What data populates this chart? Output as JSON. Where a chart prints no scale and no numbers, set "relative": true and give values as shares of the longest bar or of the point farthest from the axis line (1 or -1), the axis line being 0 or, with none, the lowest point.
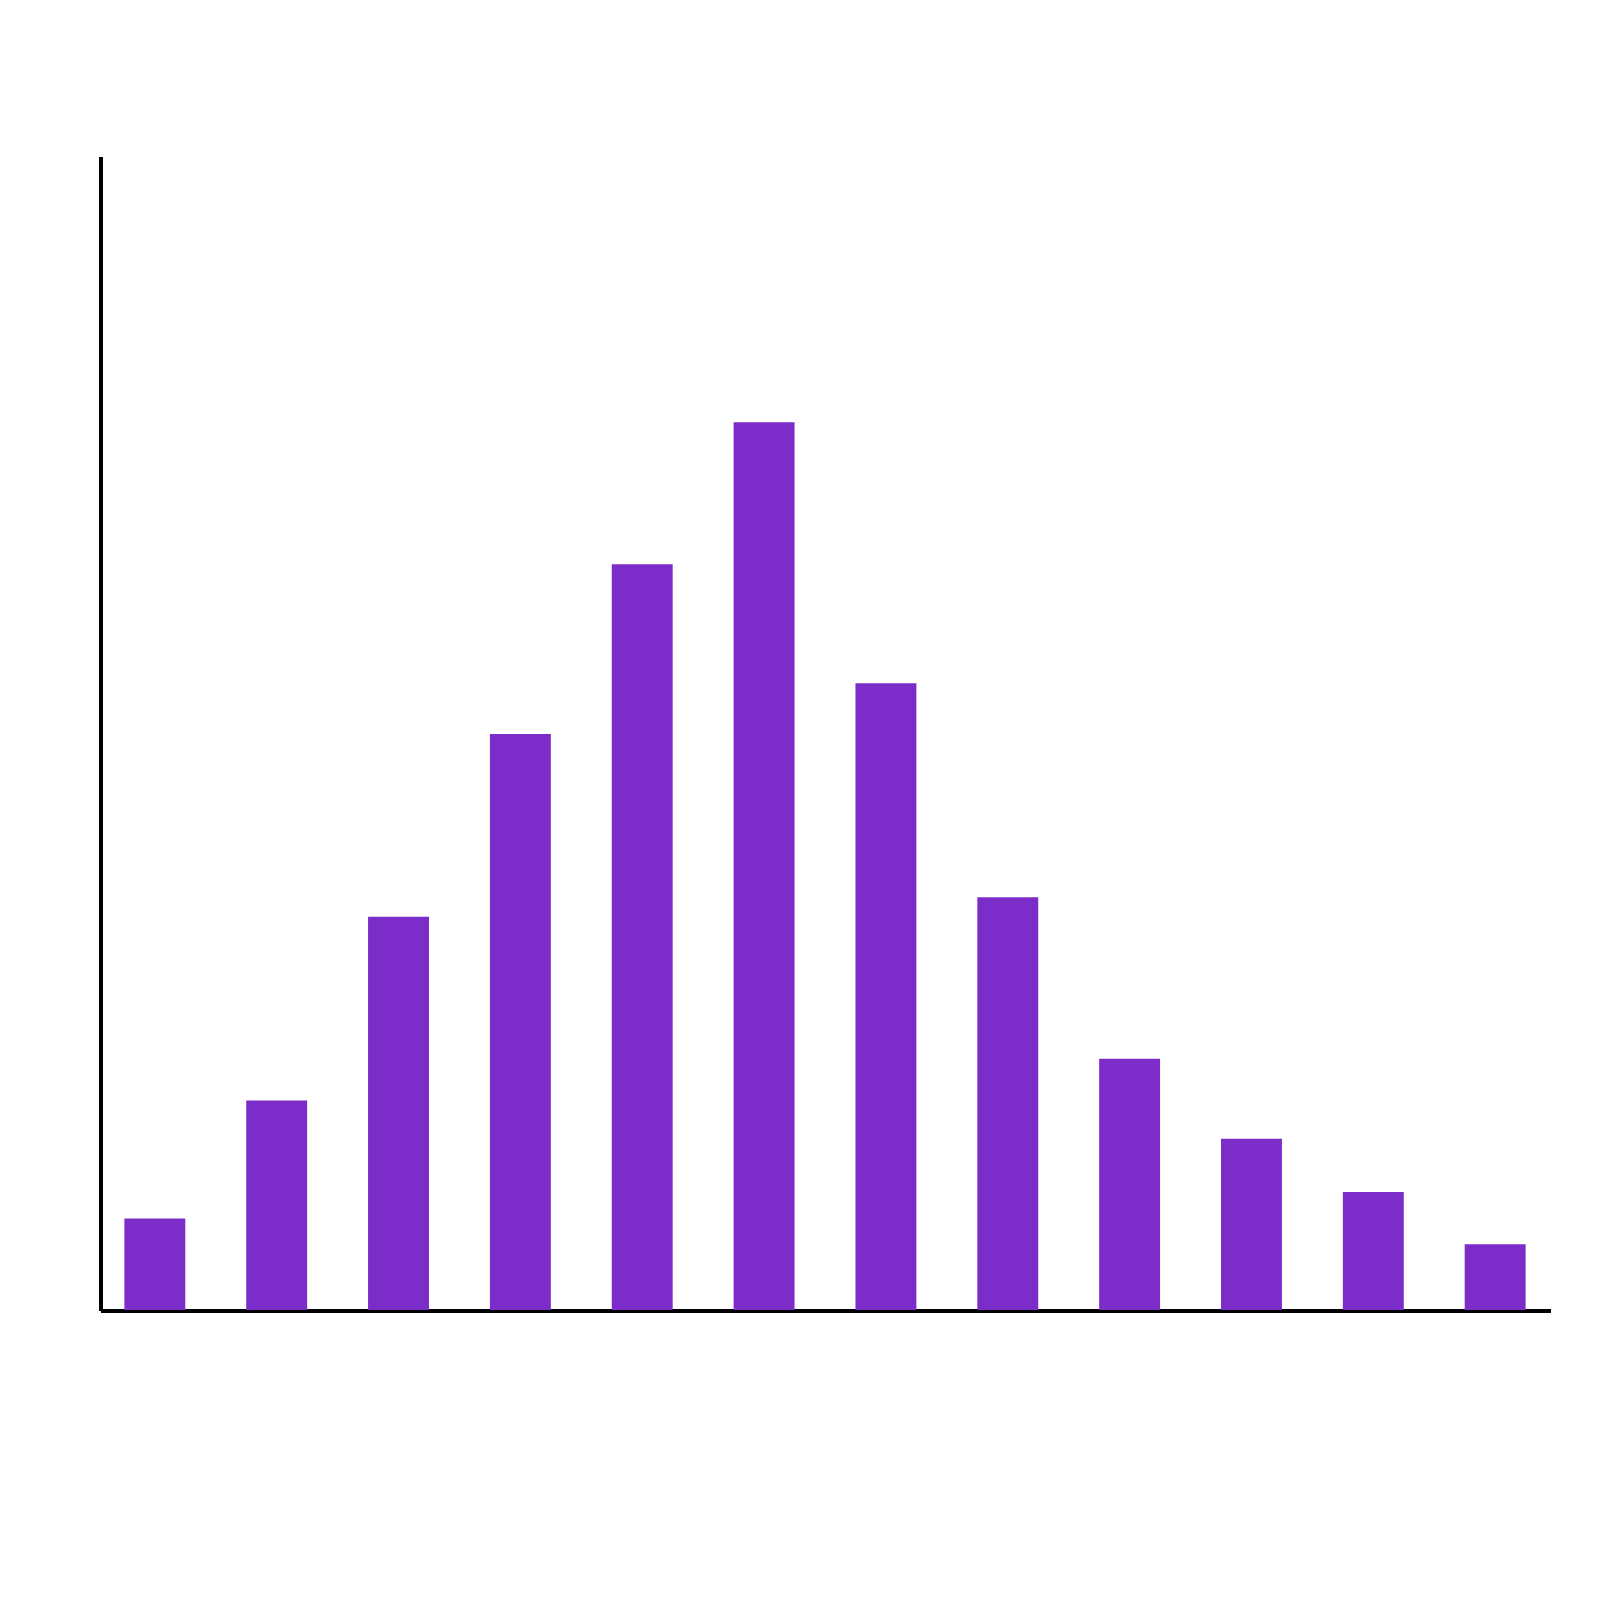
{
  "chart_data": {
    "type": "bar",
    "relative": true,
    "categories": [
      null,
      null,
      null,
      null,
      null,
      null,
      null,
      null,
      null,
      null,
      null,
      null
    ],
    "values": [
      0.103,
      0.236,
      0.443,
      0.649,
      0.84,
      1,
      0.706,
      0.465,
      0.283,
      0.193,
      0.133,
      0.074
    ],
    "color": "#7b2cc9"
  }
}
